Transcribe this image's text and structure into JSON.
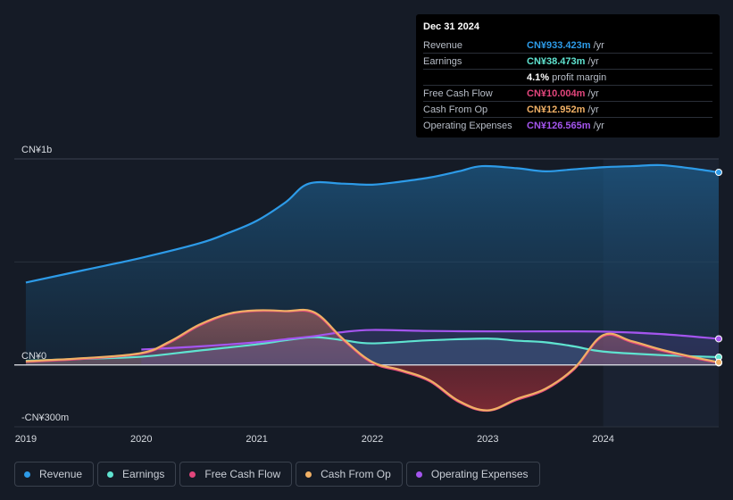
{
  "tooltip": {
    "date": "Dec 31 2024",
    "rows": [
      {
        "label": "Revenue",
        "value": "CN¥933.423m",
        "unit": "/yr",
        "color": "#2d9be8"
      },
      {
        "label": "Earnings",
        "value": "CN¥38.473m",
        "unit": "/yr",
        "color": "#5fe3d0"
      },
      {
        "label": "",
        "value": "4.1%",
        "unit": "profit margin",
        "color": "#ffffff"
      },
      {
        "label": "Free Cash Flow",
        "value": "CN¥10.004m",
        "unit": "/yr",
        "color": "#e2467c"
      },
      {
        "label": "Cash From Op",
        "value": "CN¥12.952m",
        "unit": "/yr",
        "color": "#f0b065"
      },
      {
        "label": "Operating Expenses",
        "value": "CN¥126.565m",
        "unit": "/yr",
        "color": "#a455ee"
      }
    ]
  },
  "legend": [
    {
      "label": "Revenue",
      "color": "#2d9be8"
    },
    {
      "label": "Earnings",
      "color": "#5fe3d0"
    },
    {
      "label": "Free Cash Flow",
      "color": "#e2467c"
    },
    {
      "label": "Cash From Op",
      "color": "#f0b065"
    },
    {
      "label": "Operating Expenses",
      "color": "#a455ee"
    }
  ],
  "chart_data": {
    "type": "area",
    "title": "",
    "xlabel": "",
    "ylabel": "",
    "x_range": [
      2018.9,
      2025.0
    ],
    "ylim": [
      -300,
      1000
    ],
    "y_tick_labels": [
      {
        "value": 1000,
        "label": "CN¥1b"
      },
      {
        "value": 0,
        "label": "CN¥0"
      },
      {
        "value": -300,
        "label": "-CN¥300m"
      }
    ],
    "x_ticks": [
      {
        "value": 2019,
        "label": "2019"
      },
      {
        "value": 2020,
        "label": "2020"
      },
      {
        "value": 2021,
        "label": "2021"
      },
      {
        "value": 2022,
        "label": "2022"
      },
      {
        "value": 2023,
        "label": "2023"
      },
      {
        "value": 2024,
        "label": "2024"
      }
    ],
    "highlight_start": 2024.0,
    "series": [
      {
        "name": "Revenue",
        "color": "#2d9be8",
        "x": [
          2019.0,
          2019.5,
          2020.0,
          2020.5,
          2020.75,
          2021.0,
          2021.25,
          2021.45,
          2021.75,
          2022.0,
          2022.25,
          2022.5,
          2022.75,
          2022.95,
          2023.25,
          2023.5,
          2023.75,
          2024.0,
          2024.25,
          2024.5,
          2024.75,
          2025.0
        ],
        "values": [
          400,
          460,
          520,
          590,
          640,
          700,
          790,
          880,
          880,
          875,
          890,
          910,
          940,
          965,
          955,
          940,
          950,
          960,
          965,
          970,
          955,
          935
        ]
      },
      {
        "name": "Earnings",
        "color": "#5fe3d0",
        "x": [
          2019.0,
          2019.5,
          2020.0,
          2020.5,
          2021.0,
          2021.25,
          2021.5,
          2021.75,
          2022.0,
          2022.5,
          2023.0,
          2023.25,
          2023.5,
          2023.75,
          2024.0,
          2024.5,
          2025.0
        ],
        "values": [
          20,
          30,
          40,
          70,
          100,
          120,
          135,
          120,
          105,
          120,
          128,
          118,
          110,
          90,
          65,
          48,
          38
        ]
      },
      {
        "name": "Free Cash Flow",
        "color": "#e2467c",
        "x": [
          2019.0,
          2019.5,
          2020.0,
          2020.25,
          2020.5,
          2020.75,
          2021.0,
          2021.25,
          2021.5,
          2021.75,
          2022.0,
          2022.25,
          2022.5,
          2022.75,
          2023.0,
          2023.25,
          2023.5,
          2023.75,
          2024.0,
          2024.25,
          2024.5,
          2024.75,
          2025.0
        ],
        "values": [
          15,
          30,
          55,
          110,
          190,
          245,
          262,
          260,
          250,
          120,
          10,
          -30,
          -80,
          -180,
          -222,
          -170,
          -120,
          -20,
          140,
          110,
          70,
          38,
          10
        ]
      },
      {
        "name": "Cash From Op",
        "color": "#f0b065",
        "x": [
          2019.0,
          2019.5,
          2020.0,
          2020.25,
          2020.5,
          2020.75,
          2021.0,
          2021.25,
          2021.5,
          2021.75,
          2022.0,
          2022.25,
          2022.5,
          2022.75,
          2023.0,
          2023.25,
          2023.5,
          2023.75,
          2024.0,
          2024.25,
          2024.5,
          2024.75,
          2025.0
        ],
        "values": [
          18,
          33,
          58,
          115,
          195,
          248,
          265,
          262,
          255,
          125,
          15,
          -25,
          -75,
          -175,
          -220,
          -165,
          -115,
          -15,
          145,
          115,
          75,
          42,
          13
        ]
      },
      {
        "name": "Operating Expenses",
        "color": "#a455ee",
        "x": [
          2020.0,
          2020.5,
          2021.0,
          2021.25,
          2021.5,
          2021.75,
          2022.0,
          2022.5,
          2023.0,
          2023.5,
          2024.0,
          2024.5,
          2025.0
        ],
        "values": [
          75,
          90,
          110,
          125,
          140,
          160,
          170,
          165,
          163,
          163,
          162,
          150,
          127
        ]
      }
    ]
  }
}
